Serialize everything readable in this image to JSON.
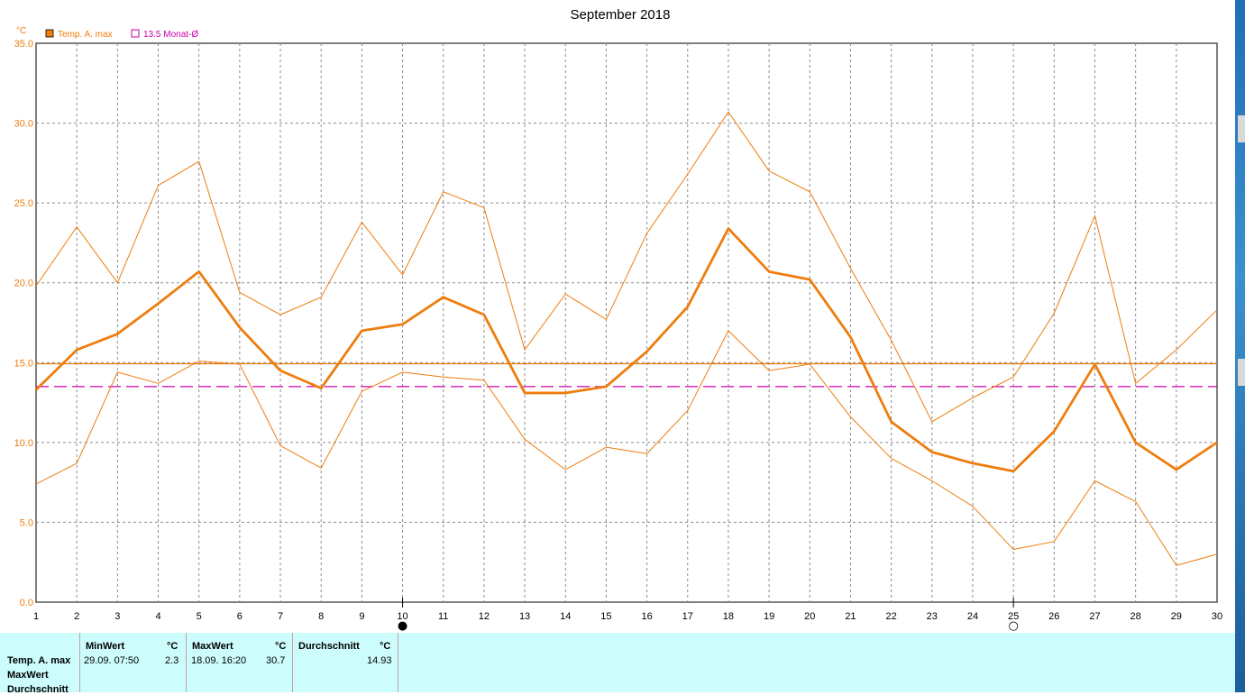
{
  "chart_data": {
    "type": "line",
    "title": "September 2018",
    "ylabel": "°C",
    "ylim": [
      0,
      35
    ],
    "yticks": [
      "0.0",
      "5.0",
      "10.0",
      "15.0",
      "20.0",
      "25.0",
      "30.0",
      "35.0"
    ],
    "x": [
      1,
      2,
      3,
      4,
      5,
      6,
      7,
      8,
      9,
      10,
      11,
      12,
      13,
      14,
      15,
      16,
      17,
      18,
      19,
      20,
      21,
      22,
      23,
      24,
      25,
      26,
      27,
      28,
      29,
      30
    ],
    "grid": true,
    "legend_position": "top-left",
    "legend": [
      {
        "label": "Temp. A. max",
        "color": "#ee7d0e"
      },
      {
        "label": "13.5 Monat-Ø",
        "color": "#cc00aa"
      }
    ],
    "series": [
      {
        "name": "Temp. A. max",
        "role": "main",
        "color": "#ee7d0e",
        "values": [
          13.3,
          15.8,
          16.8,
          18.7,
          20.7,
          17.2,
          14.5,
          13.4,
          17.0,
          17.4,
          19.1,
          18.0,
          13.1,
          13.1,
          13.5,
          15.7,
          18.5,
          23.4,
          20.7,
          20.2,
          16.6,
          11.3,
          9.4,
          8.7,
          8.2,
          10.7,
          14.9,
          10.0,
          8.3,
          10.0
        ]
      },
      {
        "role": "upper",
        "color": "#ee7d0e",
        "values": [
          19.8,
          23.5,
          20.0,
          26.1,
          27.6,
          19.4,
          18.0,
          19.1,
          23.8,
          20.5,
          25.7,
          24.7,
          15.8,
          19.3,
          17.7,
          23.1,
          26.8,
          30.7,
          27.0,
          25.7,
          20.9,
          16.4,
          11.3,
          12.8,
          14.1,
          18.1,
          24.2,
          13.7,
          15.8,
          18.3
        ]
      },
      {
        "role": "lower",
        "color": "#ee7d0e",
        "values": [
          7.4,
          8.7,
          14.4,
          13.7,
          15.1,
          14.9,
          9.8,
          8.4,
          13.2,
          14.4,
          14.1,
          13.9,
          10.2,
          8.3,
          9.7,
          9.3,
          12.0,
          17.0,
          14.5,
          14.9,
          11.6,
          9.0,
          7.6,
          6.0,
          3.3,
          3.8,
          7.6,
          6.3,
          2.3,
          3.0
        ]
      }
    ],
    "reference_lines": [
      {
        "role": "average",
        "value": 14.93,
        "color": "#ee7d0e",
        "style": "solid"
      },
      {
        "role": "monat",
        "value": 13.5,
        "color": "#cc00aa",
        "style": "dashed"
      }
    ],
    "moon_phases": [
      {
        "day": 10,
        "symbol": "●"
      },
      {
        "day": 25,
        "symbol": "○"
      }
    ]
  },
  "stats": {
    "row_labels": [
      "Temp. A. max",
      "MaxWert",
      "Durchschnitt"
    ],
    "headers": {
      "min": "MinWert",
      "max": "MaxWert",
      "avg": "Durchschnitt",
      "unit": "°C"
    },
    "min": {
      "when": "29.09.  07:50",
      "value": "2.3"
    },
    "max": {
      "when": "18.09.  16:20",
      "value": "30.7"
    },
    "avg": {
      "value": "14.93"
    }
  }
}
